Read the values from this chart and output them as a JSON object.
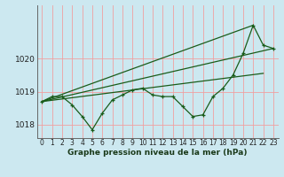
{
  "xlabel": "Graphe pression niveau de la mer (hPa)",
  "background_color": "#cce8f0",
  "grid_color": "#f0a0a0",
  "line_color": "#1a5c1a",
  "yticks": [
    1018,
    1019,
    1020
  ],
  "ylim": [
    1017.6,
    1021.6
  ],
  "xlim": [
    -0.5,
    23.5
  ],
  "xticks": [
    0,
    1,
    2,
    3,
    4,
    5,
    6,
    7,
    8,
    9,
    10,
    11,
    12,
    13,
    14,
    15,
    16,
    17,
    18,
    19,
    20,
    21,
    22,
    23
  ],
  "y_main": [
    1018.7,
    1018.85,
    1018.85,
    1018.6,
    1018.25,
    1017.85,
    1018.35,
    1018.75,
    1018.9,
    1019.05,
    1019.1,
    1018.9,
    1018.85,
    1018.85,
    1018.55,
    1018.25,
    1018.3,
    1018.85,
    1019.1,
    1019.5,
    1020.15,
    1021.0,
    1020.4,
    1020.3
  ],
  "trend_lines": [
    {
      "x": [
        0,
        22
      ],
      "y": [
        1018.7,
        1019.55
      ]
    },
    {
      "x": [
        0,
        21
      ],
      "y": [
        1018.7,
        1021.0
      ]
    },
    {
      "x": [
        0,
        23
      ],
      "y": [
        1018.7,
        1020.3
      ]
    }
  ],
  "xlabel_color": "#1a3a1a",
  "xlabel_fontsize": 6.5,
  "tick_fontsize": 5.5,
  "ytick_fontsize": 6.5
}
